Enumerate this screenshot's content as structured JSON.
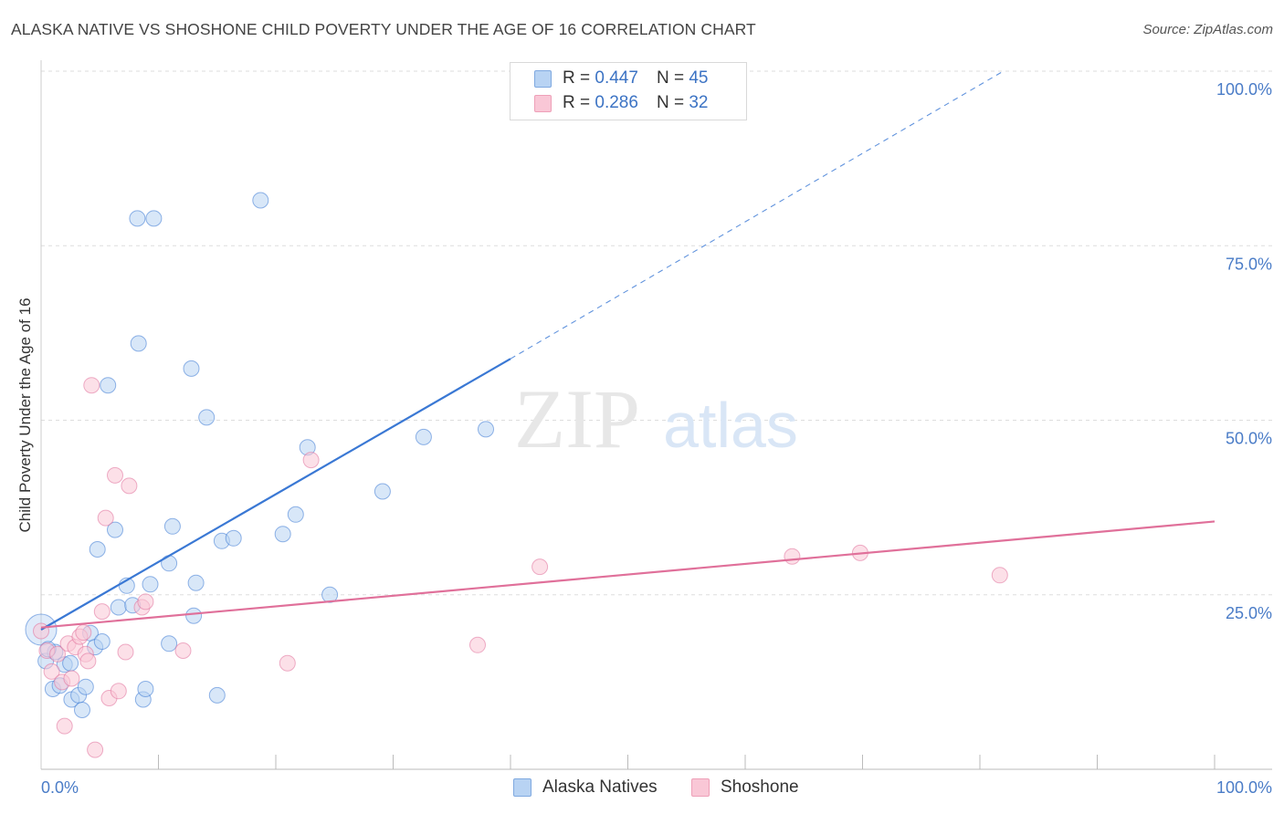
{
  "title": "ALASKA NATIVE VS SHOSHONE CHILD POVERTY UNDER THE AGE OF 16 CORRELATION CHART",
  "source": "Source: ZipAtlas.com",
  "watermark": {
    "zip": "ZIP",
    "atlas": "atlas"
  },
  "legend": {
    "r_label": "R =",
    "n_label": "N =",
    "rows": [
      {
        "r": "0.447",
        "n": "45",
        "fill": "#b8d3f3",
        "stroke": "#7fa9e0"
      },
      {
        "r": "0.286",
        "n": "32",
        "fill": "#f9c7d6",
        "stroke": "#eea0b8"
      }
    ]
  },
  "bottom_legend": [
    "Alaska Natives",
    "Shoshone"
  ],
  "chart_data": {
    "type": "scatter",
    "title": "ALASKA NATIVE VS SHOSHONE CHILD POVERTY UNDER THE AGE OF 16 CORRELATION CHART",
    "xlabel": "",
    "ylabel": "Child Poverty Under the Age of 16",
    "xlim": [
      0,
      100
    ],
    "ylim": [
      0,
      100
    ],
    "x_tick_labels": [
      "0.0%",
      "100.0%"
    ],
    "y_tick_labels": [
      "25.0%",
      "50.0%",
      "75.0%",
      "100.0%"
    ],
    "y_ticks": [
      25,
      50,
      75,
      100
    ],
    "grid": true,
    "legend_position": "top-center",
    "colors": {
      "alaska": "#3a78d4",
      "shoshone": "#e0709a",
      "grid": "#dddddd"
    },
    "series": [
      {
        "name": "Alaska Natives",
        "color": "#3a78d4",
        "fill": "#b8d3f3",
        "r": 0.447,
        "n": 45,
        "trend": {
          "x0": 0,
          "y0": 20.0,
          "x1": 40.0,
          "y1": 58.8,
          "dash_to_x": 82.0,
          "dash_to_y": 100.0
        },
        "points": [
          [
            0.0,
            20.0
          ],
          [
            0.4,
            15.5
          ],
          [
            1.2,
            16.8
          ],
          [
            1.0,
            11.5
          ],
          [
            1.6,
            12.0
          ],
          [
            2.0,
            15.0
          ],
          [
            2.5,
            15.2
          ],
          [
            2.6,
            10.0
          ],
          [
            3.2,
            10.6
          ],
          [
            3.5,
            8.5
          ],
          [
            3.8,
            11.8
          ],
          [
            4.2,
            19.5
          ],
          [
            4.6,
            17.5
          ],
          [
            4.8,
            31.5
          ],
          [
            5.2,
            18.3
          ],
          [
            5.7,
            55.0
          ],
          [
            6.3,
            34.3
          ],
          [
            6.6,
            23.2
          ],
          [
            7.3,
            26.3
          ],
          [
            7.8,
            23.5
          ],
          [
            8.2,
            78.9
          ],
          [
            8.3,
            61.0
          ],
          [
            8.7,
            10.0
          ],
          [
            8.9,
            11.5
          ],
          [
            9.3,
            26.5
          ],
          [
            9.6,
            78.9
          ],
          [
            10.9,
            18.0
          ],
          [
            10.9,
            29.5
          ],
          [
            11.2,
            34.8
          ],
          [
            12.8,
            57.4
          ],
          [
            13.0,
            22.0
          ],
          [
            13.2,
            26.7
          ],
          [
            14.1,
            50.4
          ],
          [
            15.0,
            10.6
          ],
          [
            15.4,
            32.7
          ],
          [
            16.4,
            33.1
          ],
          [
            18.7,
            81.5
          ],
          [
            20.6,
            33.7
          ],
          [
            21.7,
            36.5
          ],
          [
            22.7,
            46.1
          ],
          [
            24.6,
            25.0
          ],
          [
            29.1,
            39.8
          ],
          [
            32.6,
            47.6
          ],
          [
            37.9,
            48.7
          ],
          [
            0.6,
            17.2
          ]
        ]
      },
      {
        "name": "Shoshone",
        "color": "#e0709a",
        "fill": "#f9c7d6",
        "r": 0.286,
        "n": 32,
        "trend": {
          "x0": 0,
          "y0": 20.3,
          "x1": 100,
          "y1": 35.5
        },
        "points": [
          [
            0.0,
            19.8
          ],
          [
            0.5,
            17.0
          ],
          [
            0.9,
            14.0
          ],
          [
            1.4,
            16.5
          ],
          [
            1.8,
            12.5
          ],
          [
            2.0,
            6.2
          ],
          [
            2.3,
            18.0
          ],
          [
            2.6,
            13.0
          ],
          [
            2.9,
            17.5
          ],
          [
            3.3,
            19.0
          ],
          [
            3.6,
            19.6
          ],
          [
            3.8,
            16.5
          ],
          [
            4.0,
            15.5
          ],
          [
            4.3,
            55.0
          ],
          [
            4.6,
            2.8
          ],
          [
            5.2,
            22.6
          ],
          [
            5.5,
            36.0
          ],
          [
            5.8,
            10.2
          ],
          [
            6.3,
            42.1
          ],
          [
            6.6,
            11.2
          ],
          [
            7.2,
            16.8
          ],
          [
            7.5,
            40.6
          ],
          [
            8.6,
            23.2
          ],
          [
            8.9,
            24.0
          ],
          [
            12.1,
            17.0
          ],
          [
            21.0,
            15.2
          ],
          [
            23.0,
            44.3
          ],
          [
            37.2,
            17.8
          ],
          [
            42.5,
            29.0
          ],
          [
            64.0,
            30.5
          ],
          [
            69.8,
            31.0
          ],
          [
            81.7,
            27.8
          ]
        ]
      }
    ]
  }
}
